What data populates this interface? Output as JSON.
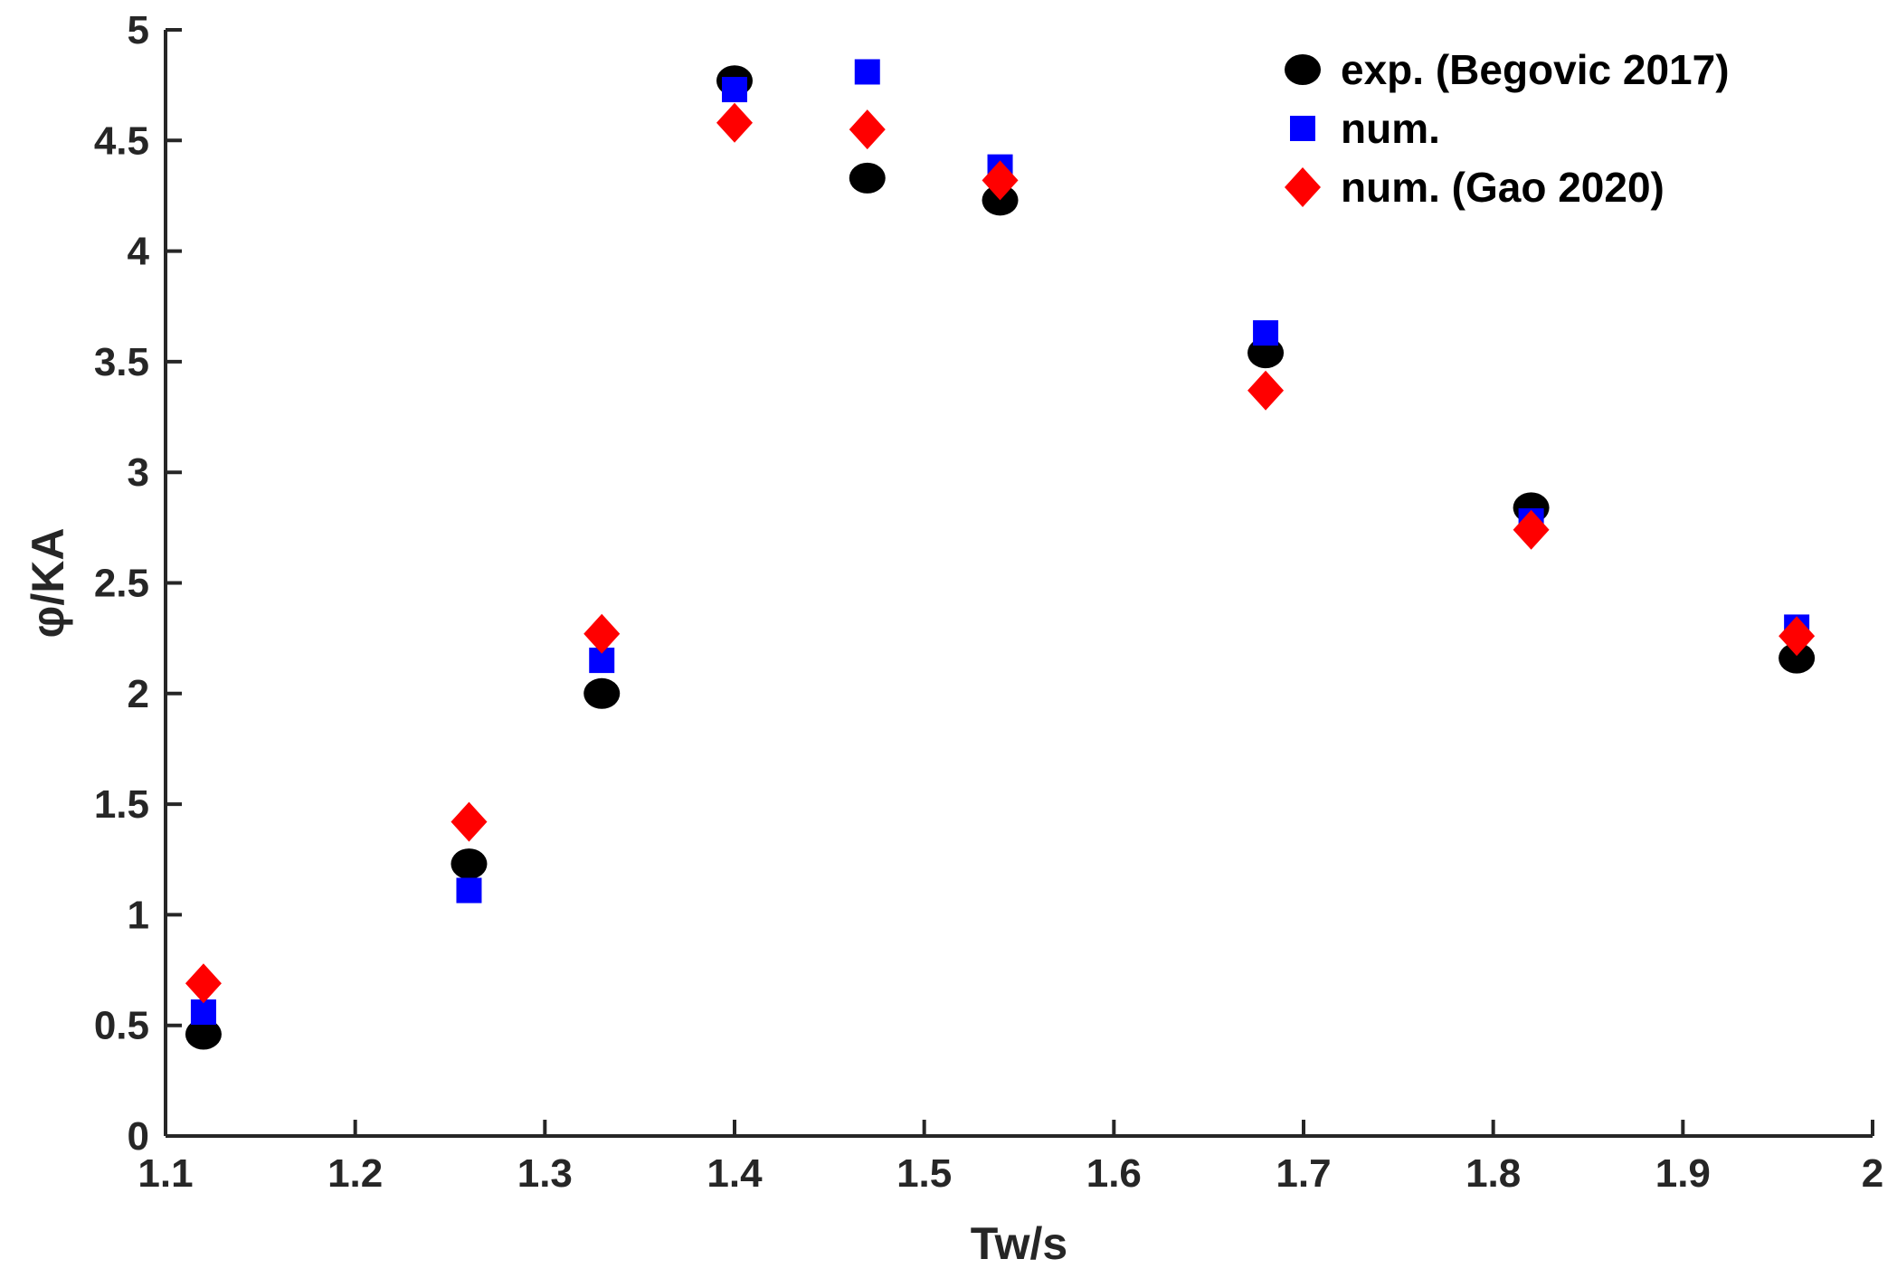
{
  "chart_data": {
    "type": "scatter",
    "title": "",
    "xlabel": "Tw/s",
    "ylabel": "φ/KA",
    "xlim": [
      1.1,
      2.0
    ],
    "ylim": [
      0,
      5
    ],
    "xticks": [
      "1.1",
      "1.2",
      "1.3",
      "1.4",
      "1.5",
      "1.6",
      "1.7",
      "1.8",
      "1.9",
      "2"
    ],
    "yticks": [
      "0",
      "0.5",
      "1",
      "1.5",
      "2",
      "2.5",
      "3",
      "3.5",
      "4",
      "4.5",
      "5"
    ],
    "grid": false,
    "legend_position": "top-right",
    "series": [
      {
        "name": "exp. (Begovic 2017)",
        "marker": "circle",
        "color": "#000000",
        "x": [
          1.12,
          1.26,
          1.33,
          1.4,
          1.47,
          1.54,
          1.68,
          1.82,
          1.96
        ],
        "y": [
          0.46,
          1.23,
          2.0,
          4.77,
          4.33,
          4.23,
          3.54,
          2.84,
          2.16
        ]
      },
      {
        "name": "num.",
        "marker": "square",
        "color": "#0000ff",
        "x": [
          1.12,
          1.26,
          1.33,
          1.4,
          1.47,
          1.54,
          1.68,
          1.82,
          1.96
        ],
        "y": [
          0.56,
          1.11,
          2.15,
          4.73,
          4.81,
          4.38,
          3.63,
          2.78,
          2.3
        ]
      },
      {
        "name": "num. (Gao 2020)",
        "marker": "diamond",
        "color": "#ff0000",
        "x": [
          1.12,
          1.26,
          1.33,
          1.4,
          1.47,
          1.54,
          1.68,
          1.82,
          1.96
        ],
        "y": [
          0.69,
          1.42,
          2.27,
          4.58,
          4.55,
          4.32,
          3.37,
          2.74,
          2.26
        ]
      }
    ]
  }
}
